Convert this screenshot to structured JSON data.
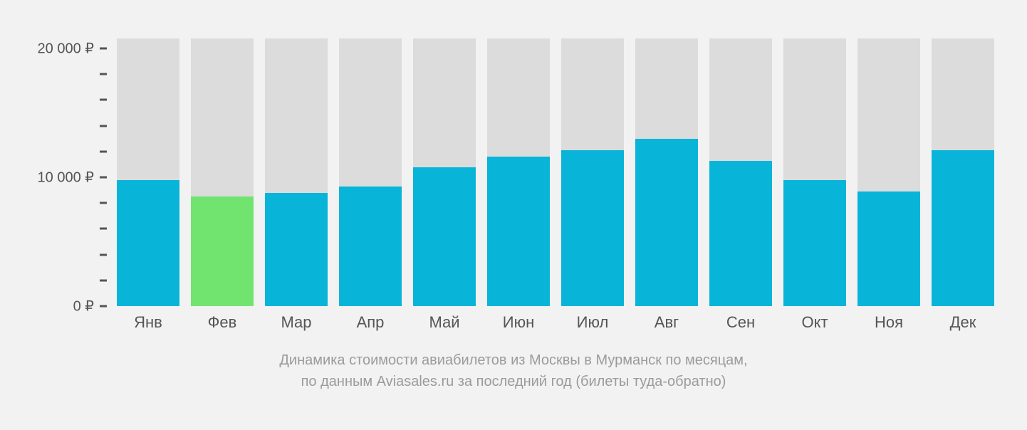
{
  "chart": {
    "type": "bar",
    "background_color": "#f2f2f2",
    "bar_bg_color": "#dcdcdc",
    "default_bar_color": "#09b4d9",
    "highlight_bar_color": "#71e470",
    "axis_text_color": "#555555",
    "caption_color": "#9b9b9b",
    "ylim": [
      0,
      21000
    ],
    "bg_bar_top_value": 20800,
    "y_ticks": [
      {
        "value": 20000,
        "label": "20 000 ₽"
      },
      {
        "value": 18000,
        "label": ""
      },
      {
        "value": 16000,
        "label": ""
      },
      {
        "value": 14000,
        "label": ""
      },
      {
        "value": 12000,
        "label": ""
      },
      {
        "value": 10000,
        "label": "10 000 ₽"
      },
      {
        "value": 8000,
        "label": ""
      },
      {
        "value": 6000,
        "label": ""
      },
      {
        "value": 4000,
        "label": ""
      },
      {
        "value": 2000,
        "label": ""
      },
      {
        "value": 0,
        "label": "0 ₽"
      }
    ],
    "months": [
      {
        "label": "Янв",
        "value": 9800,
        "highlight": false
      },
      {
        "label": "Фев",
        "value": 8500,
        "highlight": true
      },
      {
        "label": "Мар",
        "value": 8800,
        "highlight": false
      },
      {
        "label": "Апр",
        "value": 9300,
        "highlight": false
      },
      {
        "label": "Май",
        "value": 10800,
        "highlight": false
      },
      {
        "label": "Июн",
        "value": 11600,
        "highlight": false
      },
      {
        "label": "Июл",
        "value": 12100,
        "highlight": false
      },
      {
        "label": "Авг",
        "value": 13000,
        "highlight": false
      },
      {
        "label": "Сен",
        "value": 11300,
        "highlight": false
      },
      {
        "label": "Окт",
        "value": 9800,
        "highlight": false
      },
      {
        "label": "Ноя",
        "value": 8900,
        "highlight": false
      },
      {
        "label": "Дек",
        "value": 12100,
        "highlight": false
      }
    ],
    "caption_line1": "Динамика стоимости авиабилетов из Москвы в Мурманск по месяцам,",
    "caption_line2": "по данным Aviasales.ru за последний год (билеты туда-обратно)"
  }
}
